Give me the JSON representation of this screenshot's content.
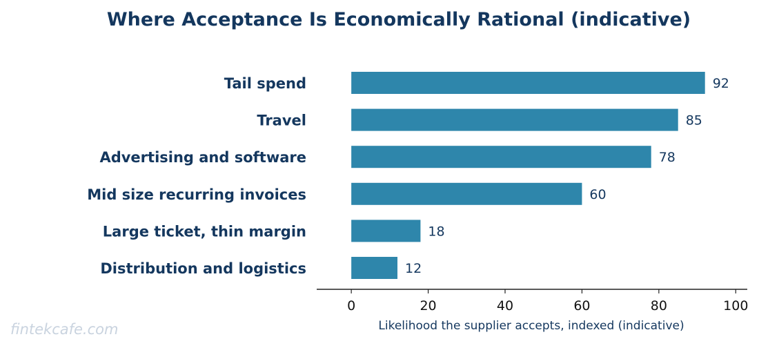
{
  "chart_data": {
    "type": "bar",
    "orientation": "horizontal",
    "title": "Where Acceptance Is Economically Rational (indicative)",
    "xlabel": "Likelihood the supplier accepts, indexed (indicative)",
    "ylabel": "",
    "categories": [
      "Tail spend",
      "Travel",
      "Advertising and software",
      "Mid size recurring invoices",
      "Large ticket, thin margin",
      "Distribution and logistics"
    ],
    "values": [
      92,
      85,
      78,
      60,
      18,
      12
    ],
    "xlim": [
      -9,
      103
    ],
    "xticks": [
      0,
      20,
      40,
      60,
      80,
      100
    ],
    "grid": false,
    "legend": "none",
    "bar_color": "#2e86ab",
    "text_color": "#14375e"
  },
  "watermark": "fintekcafe.com"
}
